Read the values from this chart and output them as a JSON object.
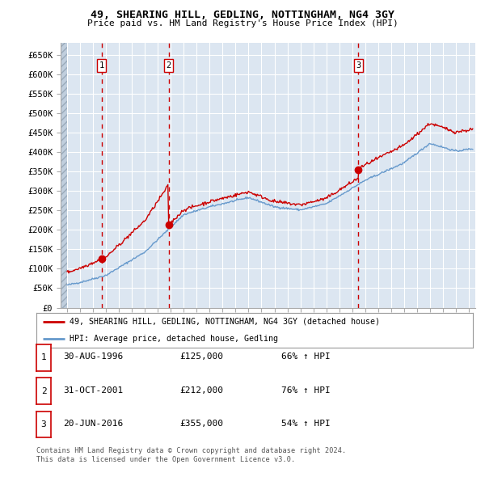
{
  "title1": "49, SHEARING HILL, GEDLING, NOTTINGHAM, NG4 3GY",
  "title2": "Price paid vs. HM Land Registry's House Price Index (HPI)",
  "background_color": "#ffffff",
  "plot_bg_color": "#dce6f1",
  "grid_color": "#ffffff",
  "purchases": [
    {
      "date_num": 1996.664,
      "price": 125000,
      "label": "1"
    },
    {
      "date_num": 2001.831,
      "price": 212000,
      "label": "2"
    },
    {
      "date_num": 2016.472,
      "price": 355000,
      "label": "3"
    }
  ],
  "red_line_color": "#cc0000",
  "blue_line_color": "#6699cc",
  "vline_color": "#cc0000",
  "ylim": [
    0,
    680000
  ],
  "yticks": [
    0,
    50000,
    100000,
    150000,
    200000,
    250000,
    300000,
    350000,
    400000,
    450000,
    500000,
    550000,
    600000,
    650000
  ],
  "xlim_start": 1993.5,
  "xlim_end": 2025.5,
  "legend_line1": "49, SHEARING HILL, GEDLING, NOTTINGHAM, NG4 3GY (detached house)",
  "legend_line2": "HPI: Average price, detached house, Gedling",
  "footer1": "Contains HM Land Registry data © Crown copyright and database right 2024.",
  "footer2": "This data is licensed under the Open Government Licence v3.0.",
  "table_rows": [
    {
      "num": "1",
      "date": "30-AUG-1996",
      "price": "£125,000",
      "pct": "66% ↑ HPI"
    },
    {
      "num": "2",
      "date": "31-OCT-2001",
      "price": "£212,000",
      "pct": "76% ↑ HPI"
    },
    {
      "num": "3",
      "date": "20-JUN-2016",
      "price": "£355,000",
      "pct": "54% ↑ HPI"
    }
  ]
}
